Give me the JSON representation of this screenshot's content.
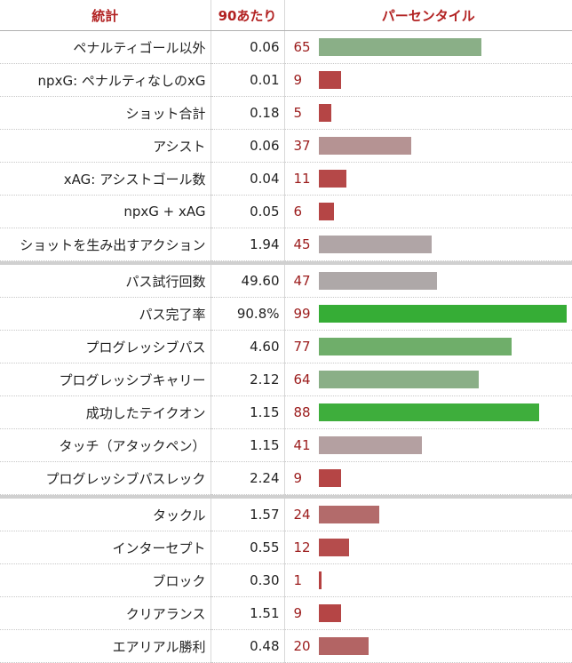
{
  "headers": {
    "stat": "統計",
    "per90": "90あたり",
    "percentile": "パーセンタイル"
  },
  "groups": [
    {
      "rows": [
        {
          "stat": "ペナルティゴール以外",
          "per90": "0.06",
          "pct": "65",
          "color": "#8aaf87"
        },
        {
          "stat": "npxG: ペナルティなしのxG",
          "per90": "0.01",
          "pct": "9",
          "color": "#b54545"
        },
        {
          "stat": "ショット合計",
          "per90": "0.18",
          "pct": "5",
          "color": "#b54545"
        },
        {
          "stat": "アシスト",
          "per90": "0.06",
          "pct": "37",
          "color": "#b59393"
        },
        {
          "stat": "xAG: アシストゴール数",
          "per90": "0.04",
          "pct": "11",
          "color": "#b54848"
        },
        {
          "stat": "npxG + xAG",
          "per90": "0.05",
          "pct": "6",
          "color": "#b54545"
        },
        {
          "stat": "ショットを生み出すアクション",
          "per90": "1.94",
          "pct": "45",
          "color": "#b0a5a6"
        }
      ]
    },
    {
      "rows": [
        {
          "stat": "パス試行回数",
          "per90": "49.60",
          "pct": "47",
          "color": "#aea8a8"
        },
        {
          "stat": "パス完了率",
          "per90": "90.8%",
          "pct": "99",
          "color": "#36ad36"
        },
        {
          "stat": "プログレッシブパス",
          "per90": "4.60",
          "pct": "77",
          "color": "#6fae6a"
        },
        {
          "stat": "プログレッシブキャリー",
          "per90": "2.12",
          "pct": "64",
          "color": "#8aaf87"
        },
        {
          "stat": "成功したテイクオン",
          "per90": "1.15",
          "pct": "88",
          "color": "#3eae3c"
        },
        {
          "stat": "タッチ（アタックペン）",
          "per90": "1.15",
          "pct": "41",
          "color": "#b4a0a1"
        },
        {
          "stat": "プログレッシブパスレック",
          "per90": "2.24",
          "pct": "9",
          "color": "#b54545"
        }
      ]
    },
    {
      "rows": [
        {
          "stat": "タックル",
          "per90": "1.57",
          "pct": "24",
          "color": "#b36b6b"
        },
        {
          "stat": "インターセプト",
          "per90": "0.55",
          "pct": "12",
          "color": "#b54c4c"
        },
        {
          "stat": "ブロック",
          "per90": "0.30",
          "pct": "1",
          "color": "#b54040"
        },
        {
          "stat": "クリアランス",
          "per90": "1.51",
          "pct": "9",
          "color": "#b54545"
        },
        {
          "stat": "エアリアル勝利",
          "per90": "0.48",
          "pct": "20",
          "color": "#b36464"
        }
      ]
    }
  ]
}
